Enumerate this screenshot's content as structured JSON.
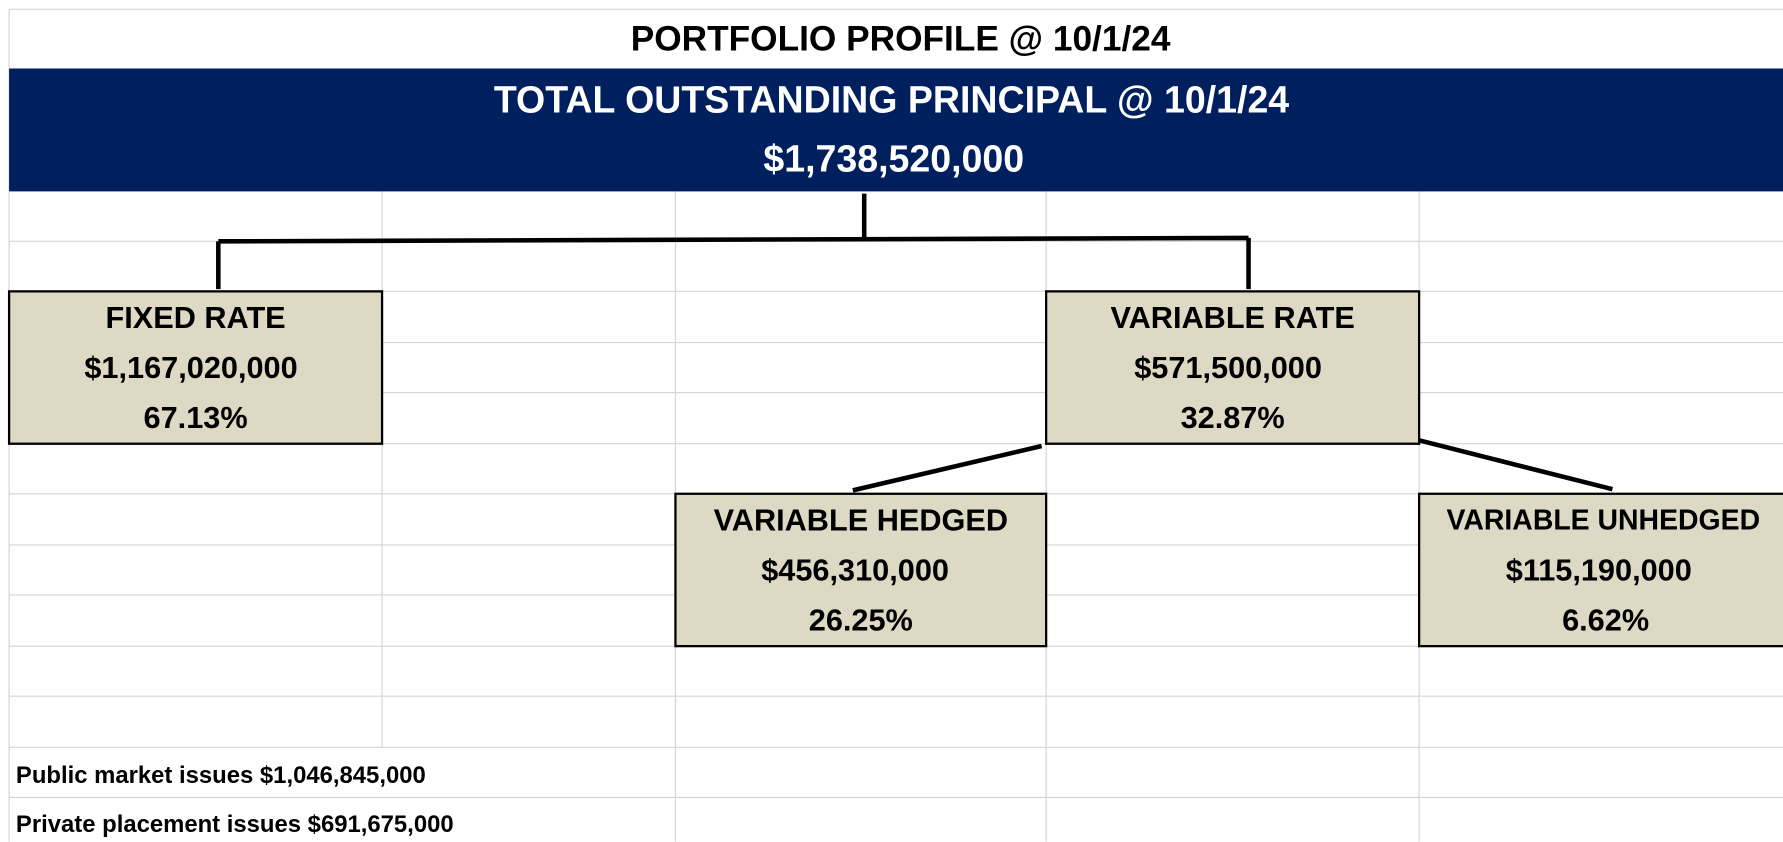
{
  "title": "PORTFOLIO PROFILE @ 10/1/24",
  "header": {
    "title": "TOTAL OUTSTANDING PRINCIPAL @ 10/1/24",
    "total": "$1,738,520,000"
  },
  "nodes": [
    {
      "label": "FIXED RATE",
      "amount": "$1,167,020,000",
      "percent": "67.13%"
    },
    {
      "label": "VARIABLE RATE",
      "amount": "$571,500,000",
      "percent": "32.87%"
    },
    {
      "label": "VARIABLE HEDGED",
      "amount": "$456,310,000",
      "percent": "26.25%"
    },
    {
      "label": "VARIABLE UNHEDGED",
      "amount": "$115,190,000",
      "percent": "6.62%"
    }
  ],
  "notes": [
    "Public market issues $1,046,845,000",
    "Private placement issues $691,675,000"
  ]
}
